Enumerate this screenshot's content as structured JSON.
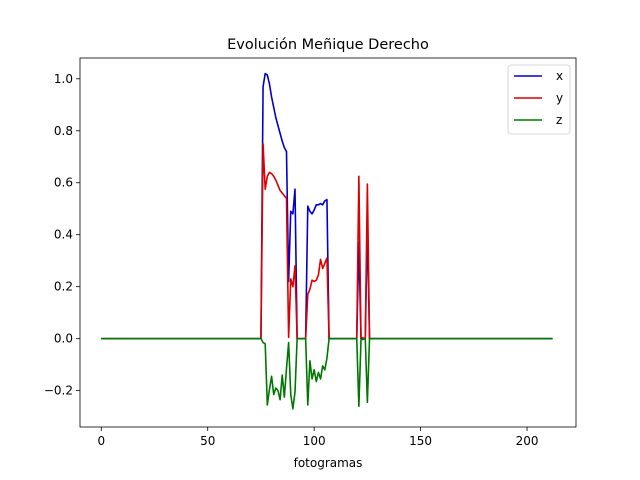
{
  "chart_data": {
    "type": "line",
    "title": "Evolución Meñique Derecho",
    "xlabel": "fotogramas",
    "ylabel": "",
    "xlim": [
      -10,
      223
    ],
    "ylim": [
      -0.34,
      1.08
    ],
    "xticks": [
      0,
      50,
      100,
      150,
      200
    ],
    "yticks": [
      -0.2,
      0.0,
      0.2,
      0.4,
      0.6,
      0.8,
      1.0
    ],
    "ytick_labels": [
      "−0.2",
      "0.0",
      "0.2",
      "0.4",
      "0.6",
      "0.8",
      "1.0"
    ],
    "grid": false,
    "legend": "top-right",
    "series": [
      {
        "name": "x",
        "color": "#0000cc",
        "points": [
          [
            0,
            0
          ],
          [
            75,
            0
          ],
          [
            76,
            0.97
          ],
          [
            77,
            1.02
          ],
          [
            78,
            1.015
          ],
          [
            79,
            0.98
          ],
          [
            80,
            0.93
          ],
          [
            81,
            0.89
          ],
          [
            82,
            0.85
          ],
          [
            83,
            0.82
          ],
          [
            84,
            0.79
          ],
          [
            85,
            0.76
          ],
          [
            86,
            0.735
          ],
          [
            87,
            0.72
          ],
          [
            88,
            0.22
          ],
          [
            89,
            0.49
          ],
          [
            90,
            0.48
          ],
          [
            91,
            0.575
          ],
          [
            92,
            0
          ],
          [
            96,
            0
          ],
          [
            97,
            0.51
          ],
          [
            98,
            0.49
          ],
          [
            99,
            0.48
          ],
          [
            100,
            0.495
          ],
          [
            101,
            0.515
          ],
          [
            102,
            0.515
          ],
          [
            103,
            0.52
          ],
          [
            104,
            0.515
          ],
          [
            105,
            0.53
          ],
          [
            106,
            0.535
          ],
          [
            107,
            0
          ],
          [
            120,
            0
          ],
          [
            121,
            0.37
          ],
          [
            122,
            0
          ],
          [
            124,
            0
          ],
          [
            125,
            0.43
          ],
          [
            126,
            0
          ],
          [
            212,
            0
          ]
        ]
      },
      {
        "name": "y",
        "color": "#dd0000",
        "points": [
          [
            0,
            0
          ],
          [
            75,
            0
          ],
          [
            76,
            0.75
          ],
          [
            77,
            0.575
          ],
          [
            78,
            0.625
          ],
          [
            79,
            0.64
          ],
          [
            80,
            0.635
          ],
          [
            81,
            0.625
          ],
          [
            82,
            0.61
          ],
          [
            83,
            0.59
          ],
          [
            84,
            0.57
          ],
          [
            85,
            0.56
          ],
          [
            86,
            0.55
          ],
          [
            87,
            0.54
          ],
          [
            88,
            0.005
          ],
          [
            89,
            0.23
          ],
          [
            90,
            0.2
          ],
          [
            91,
            0.28
          ],
          [
            92,
            0
          ],
          [
            96,
            0
          ],
          [
            97,
            0.17
          ],
          [
            98,
            0.19
          ],
          [
            99,
            0.225
          ],
          [
            100,
            0.22
          ],
          [
            101,
            0.225
          ],
          [
            102,
            0.245
          ],
          [
            103,
            0.305
          ],
          [
            104,
            0.27
          ],
          [
            105,
            0.29
          ],
          [
            106,
            0.31
          ],
          [
            107,
            0
          ],
          [
            120,
            0
          ],
          [
            121,
            0.625
          ],
          [
            122,
            0.005
          ],
          [
            124,
            0
          ],
          [
            125,
            0.595
          ],
          [
            126,
            0
          ],
          [
            212,
            0
          ]
        ]
      },
      {
        "name": "z",
        "color": "#007700",
        "points": [
          [
            0,
            0
          ],
          [
            75,
            0
          ],
          [
            76,
            -0.015
          ],
          [
            77,
            -0.02
          ],
          [
            78,
            -0.255
          ],
          [
            79,
            -0.195
          ],
          [
            80,
            -0.145
          ],
          [
            81,
            -0.215
          ],
          [
            82,
            -0.19
          ],
          [
            83,
            -0.2
          ],
          [
            84,
            -0.235
          ],
          [
            85,
            -0.14
          ],
          [
            86,
            -0.225
          ],
          [
            87,
            -0.115
          ],
          [
            88,
            -0.015
          ],
          [
            89,
            -0.215
          ],
          [
            90,
            -0.27
          ],
          [
            91,
            -0.205
          ],
          [
            92,
            0
          ],
          [
            96,
            0
          ],
          [
            97,
            -0.255
          ],
          [
            98,
            -0.085
          ],
          [
            99,
            -0.155
          ],
          [
            100,
            -0.12
          ],
          [
            101,
            -0.165
          ],
          [
            102,
            -0.13
          ],
          [
            103,
            -0.155
          ],
          [
            104,
            -0.105
          ],
          [
            105,
            -0.12
          ],
          [
            106,
            -0.075
          ],
          [
            107,
            0
          ],
          [
            120,
            0
          ],
          [
            121,
            -0.26
          ],
          [
            122,
            -0.005
          ],
          [
            124,
            0
          ],
          [
            125,
            -0.245
          ],
          [
            126,
            0
          ],
          [
            212,
            0
          ]
        ]
      }
    ]
  }
}
